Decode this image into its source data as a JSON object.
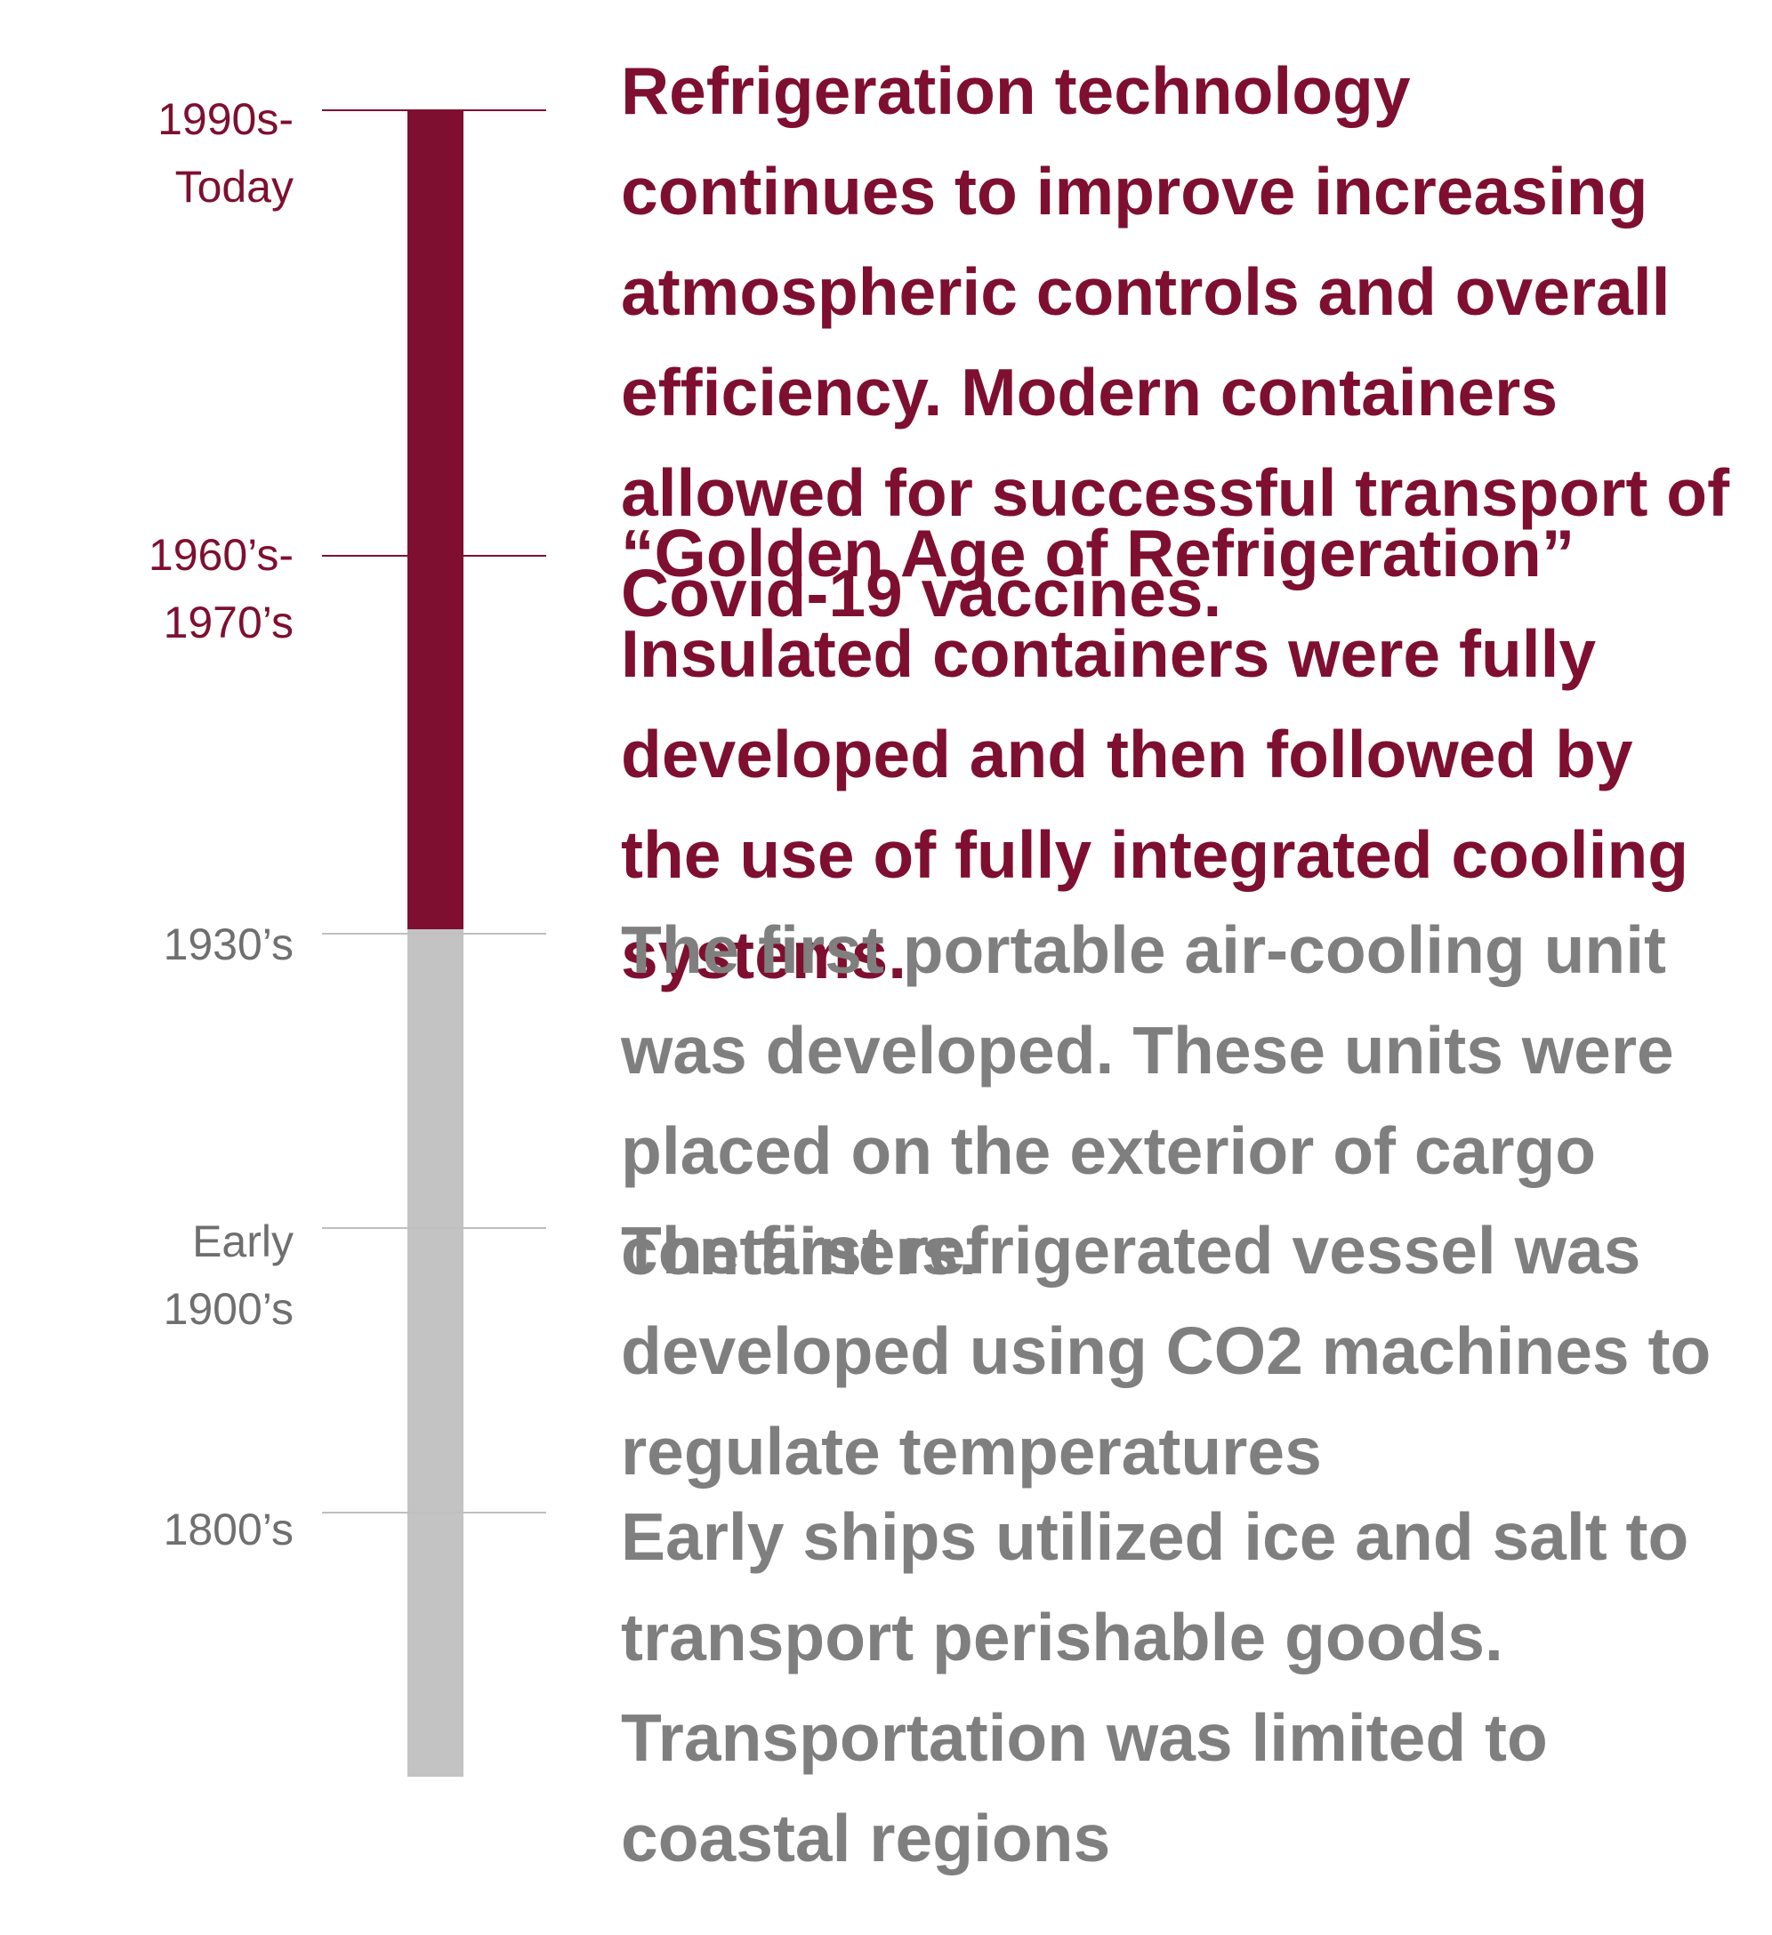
{
  "colors": {
    "accent": "#7e0f31",
    "muted_text": "#7f7f7f",
    "muted_bar": "#c3c3c3",
    "muted_tick": "#bfbfbf"
  },
  "timeline": [
    {
      "period_lines": [
        "1990s-",
        "Today"
      ],
      "description": "Refrigeration technology continues to improve increasing atmospheric controls and overall efficiency.  Modern containers allowed for successful transport of Covid-19 vaccines.",
      "highlight": true
    },
    {
      "period_lines": [
        "1960’s-",
        "1970’s"
      ],
      "description": "“Golden Age of Refrigeration” Insulated containers were fully developed and then followed by the use of fully integrated cooling systems.",
      "highlight": true
    },
    {
      "period_lines": [
        "1930’s"
      ],
      "description": "The first portable air-cooling unit was developed. These units were placed on the exterior of cargo containers.",
      "highlight": false
    },
    {
      "period_lines": [
        "Early",
        "1900’s"
      ],
      "description": "The first refrigerated vessel was developed using CO2 machines to regulate temperatures",
      "highlight": false
    },
    {
      "period_lines": [
        "1800’s"
      ],
      "description": "Early ships utilized ice and salt to transport perishable goods. Transportation  was limited to coastal regions",
      "highlight": false
    }
  ]
}
